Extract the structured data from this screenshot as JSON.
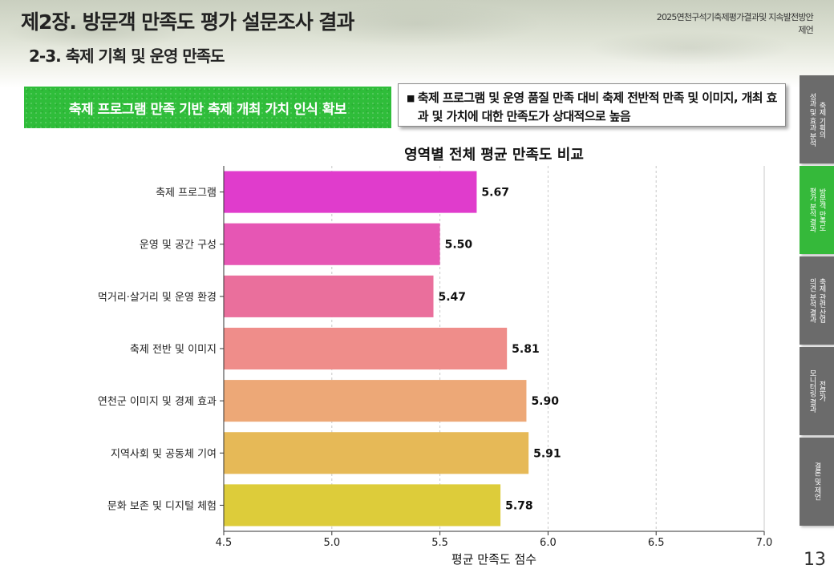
{
  "header": {
    "title": "제2장. 방문객 만족도 평가 설문조사 결과",
    "subtitle": "2-3. 축제 기획 및 운영 만족도",
    "report_title": "2025연천구석기축제평가결과및 지속발전방안제언"
  },
  "banner": {
    "text": "축제 프로그램 만족 기반 축제 개최 가치 인식 확보"
  },
  "note": {
    "bullet": "■",
    "text": "축제 프로그램 및 운영 품질 만족 대비 축제 전반적 만족 및 이미지, 개최 효과 및 가치에 대한 만족도가 상대적으로 높음"
  },
  "chart_data": {
    "type": "bar",
    "orientation": "horizontal",
    "title": "영역별 전체 평균 만족도 비교",
    "xlabel": "평균 만족도 점수",
    "ylabel": "",
    "categories": [
      "축제 프로그램",
      "운영 및 공간 구성",
      "먹거리·살거리 및 운영 환경",
      "축제 전반 및 이미지",
      "연천군 이미지 및 경제 효과",
      "지역사회 및 공동체 기여",
      "문화 보존 및 디지털 체험"
    ],
    "values": [
      5.67,
      5.5,
      5.47,
      5.81,
      5.9,
      5.91,
      5.78
    ],
    "value_labels": [
      "5.67",
      "5.50",
      "5.47",
      "5.81",
      "5.90",
      "5.91",
      "5.78"
    ],
    "colors": [
      "#e03ccc",
      "#e656b4",
      "#ea6f9c",
      "#ef8d8a",
      "#eda877",
      "#e6b957",
      "#ddcc3a"
    ],
    "xlim": [
      4.5,
      7.0
    ],
    "xticks": [
      "4.5",
      "5.0",
      "5.5",
      "6.0",
      "6.5",
      "7.0"
    ],
    "grid": "vertical dashed"
  },
  "side_tabs": [
    {
      "label": "축제 기획의\n성과 및 효과 분석",
      "active": false
    },
    {
      "label": "방문객 만족도\n평가 분석 결과",
      "active": true
    },
    {
      "label": "축제 관련 산업\n의견 분석 결과",
      "active": false
    },
    {
      "label": "전문가\n모니터링 결과",
      "active": false
    },
    {
      "label": "결론 및 제언",
      "active": false
    }
  ],
  "page_number": "13"
}
